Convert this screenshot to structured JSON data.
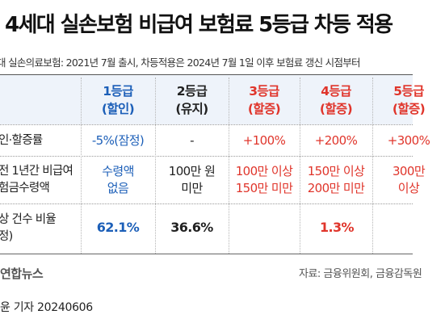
{
  "title": "4세대 실손보험 비급여 보험료 5등급 차등 적용",
  "subtitle": "대 실손의료보험: 2021년 7월 출시, 차등적용은 2024년 7월 1일 이후 보험료 갱신 시점부터",
  "columns": [
    {
      "grade": "1등급",
      "status": "(할인)"
    },
    {
      "grade": "2등급",
      "status": "(유지)"
    },
    {
      "grade": "3등급",
      "status": "(할증)"
    },
    {
      "grade": "4등급",
      "status": "(할증)"
    },
    {
      "grade": "5등급",
      "status": "(할증)"
    }
  ],
  "rows": {
    "rate": {
      "label": "인·할증률",
      "values": [
        "-5%(잠정)",
        "-",
        "+100%",
        "+200%",
        "+300%"
      ]
    },
    "claims": {
      "label_line1": "전 1년간 비급여",
      "label_line2": "험금수령액",
      "values": [
        [
          "수령액",
          "없음"
        ],
        [
          "100만 원",
          "미만"
        ],
        [
          "100만 이상",
          "150만 미만"
        ],
        [
          "150만 이상",
          "200만 미만"
        ],
        [
          "300만",
          "이상"
        ]
      ]
    },
    "ratio": {
      "label_line1": "상 건수 비율",
      "label_line2": "정)",
      "values": [
        "62.1%",
        "36.6%",
        "1.3%"
      ]
    }
  },
  "footer": {
    "logo": "연합뉴스",
    "source": "자료: 금융위원회, 금융감독원",
    "byline": "윤 기자  20240606"
  },
  "colors": {
    "discount": "#1c5fb8",
    "maintain": "#222222",
    "surcharge": "#e0352b",
    "header_band": "#eef3fa"
  }
}
